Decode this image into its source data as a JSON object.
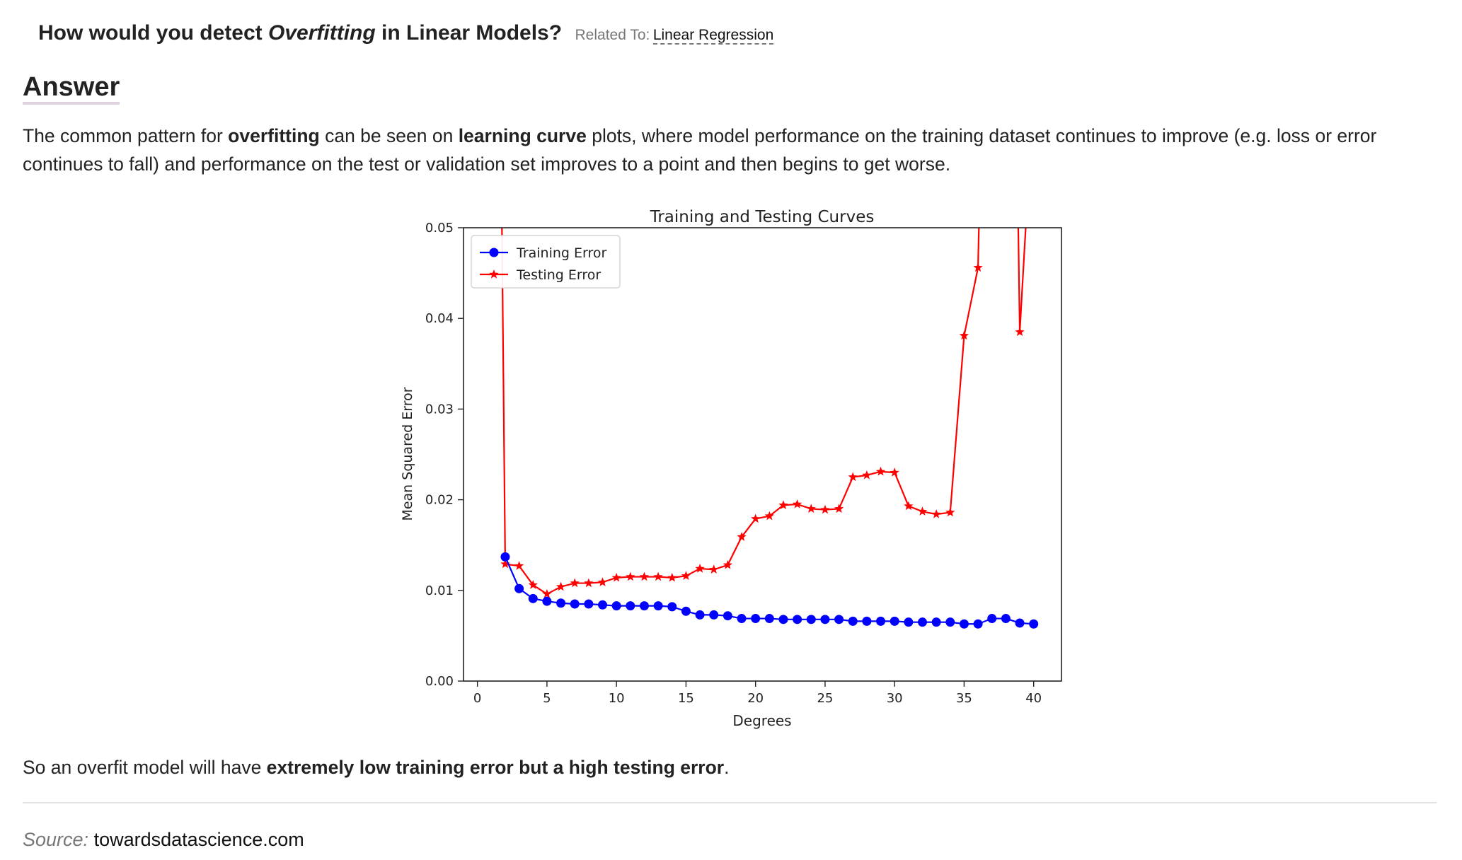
{
  "question": {
    "title_prefix": "How would you detect ",
    "title_emphasis": "Overfitting",
    "title_suffix": " in Linear Models?",
    "related_label": "Related To:",
    "related_link": "Linear Regression"
  },
  "answer": {
    "heading": "Answer",
    "p1_a": "The common pattern for ",
    "p1_b": "overfitting",
    "p1_c": " can be seen on ",
    "p1_d": "learning curve",
    "p1_e": " plots, where model performance on the training dataset continues to improve (e.g. loss or error continues to fall) and performance on the test or validation set improves to a point and then begins to get worse.",
    "p2_a": "So an overfit model will have ",
    "p2_b": "extremely low training error but a high testing error",
    "p2_c": "."
  },
  "source": {
    "label": "Source:",
    "value": "towardsdatascience.com"
  },
  "chart_data": {
    "type": "line",
    "title": "Training and Testing Curves",
    "xlabel": "Degrees",
    "ylabel": "Mean Squared Error",
    "xlim": [
      -1,
      42
    ],
    "ylim": [
      0,
      0.05
    ],
    "xticks": [
      0,
      5,
      10,
      15,
      20,
      25,
      30,
      35,
      40
    ],
    "yticks": [
      0.0,
      0.01,
      0.02,
      0.03,
      0.04,
      0.05
    ],
    "ytick_labels": [
      "0.00",
      "0.01",
      "0.02",
      "0.03",
      "0.04",
      "0.05"
    ],
    "legend_position": "top-left",
    "grid": false,
    "series": [
      {
        "name": "Training Error",
        "color": "#0000ff",
        "marker": "circle",
        "x": [
          2,
          3,
          4,
          5,
          6,
          7,
          8,
          9,
          10,
          11,
          12,
          13,
          14,
          15,
          16,
          17,
          18,
          19,
          20,
          21,
          22,
          23,
          24,
          25,
          26,
          27,
          28,
          29,
          30,
          31,
          32,
          33,
          34,
          35,
          36,
          37,
          38,
          39,
          40
        ],
        "y": [
          0.0137,
          0.0102,
          0.0091,
          0.0088,
          0.0086,
          0.0085,
          0.0085,
          0.0084,
          0.0083,
          0.0083,
          0.0083,
          0.0083,
          0.0082,
          0.0077,
          0.0073,
          0.0073,
          0.0072,
          0.0069,
          0.0069,
          0.0069,
          0.0068,
          0.0068,
          0.0068,
          0.0068,
          0.0068,
          0.0066,
          0.0066,
          0.0066,
          0.0066,
          0.0065,
          0.0065,
          0.0065,
          0.0065,
          0.0063,
          0.0063,
          0.0069,
          0.0069,
          0.0064,
          0.0063
        ]
      },
      {
        "name": "Testing Error",
        "color": "#ff0000",
        "marker": "star",
        "x": [
          1.7,
          2,
          3,
          4,
          5,
          6,
          7,
          8,
          9,
          10,
          11,
          12,
          13,
          14,
          15,
          16,
          17,
          18,
          19,
          20,
          21,
          22,
          23,
          24,
          25,
          26,
          27,
          28,
          29,
          30,
          31,
          32,
          33,
          34,
          35,
          36,
          36.2,
          38.8,
          39,
          39.8
        ],
        "y": [
          0.06,
          0.0129,
          0.0127,
          0.0106,
          0.0096,
          0.0104,
          0.0108,
          0.0108,
          0.0109,
          0.0114,
          0.0115,
          0.0115,
          0.0115,
          0.0114,
          0.0116,
          0.0124,
          0.0123,
          0.0128,
          0.0159,
          0.0179,
          0.0182,
          0.0194,
          0.0195,
          0.019,
          0.0189,
          0.019,
          0.0225,
          0.0227,
          0.0231,
          0.023,
          0.0193,
          0.0187,
          0.0184,
          0.0186,
          0.0381,
          0.0456,
          0.06,
          0.06,
          0.0385,
          0.06
        ],
        "marker_mask": [
          false,
          true,
          true,
          true,
          true,
          true,
          true,
          true,
          true,
          true,
          true,
          true,
          true,
          true,
          true,
          true,
          true,
          true,
          true,
          true,
          true,
          true,
          true,
          true,
          true,
          true,
          true,
          true,
          true,
          true,
          true,
          true,
          true,
          true,
          true,
          true,
          false,
          false,
          true,
          false
        ]
      }
    ]
  }
}
